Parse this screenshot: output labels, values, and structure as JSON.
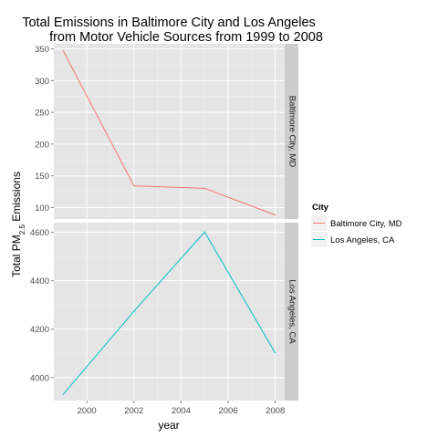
{
  "chart_data": {
    "type": "line",
    "title_lines": [
      "Total Emissions in Baltimore City and Los Angeles",
      "from Motor Vehicle Sources from 1999 to 2008"
    ],
    "xlabel": "year",
    "ylabel_parts": {
      "main": "Total PM",
      "sub": "2.5",
      "rest": " Emissions"
    },
    "x": [
      1999,
      2002,
      2005,
      2008
    ],
    "x_ticks": [
      2000,
      2002,
      2004,
      2006,
      2008
    ],
    "xlim": [
      1998.6,
      2008.4
    ],
    "legend": {
      "title": "City",
      "position": "right"
    },
    "grid": true,
    "panels": [
      {
        "strip": "Baltimore City, MD",
        "ylim": [
          82,
          358
        ],
        "y_ticks": [
          100,
          150,
          200,
          250,
          300,
          350
        ],
        "series": [
          {
            "name": "Baltimore City, MD",
            "color": "#F8766D",
            "values": [
              346.8,
              134.3,
              130.4,
              88.3
            ]
          }
        ]
      },
      {
        "strip": "Los Angeles, CA",
        "ylim": [
          3905,
          4640
        ],
        "y_ticks": [
          4000,
          4200,
          4400,
          4600
        ],
        "series": [
          {
            "name": "Los Angeles, CA",
            "color": "#00BFC4",
            "values": [
              3931.1,
              4274.0,
              4601.4,
              4101.3
            ]
          }
        ]
      }
    ]
  }
}
